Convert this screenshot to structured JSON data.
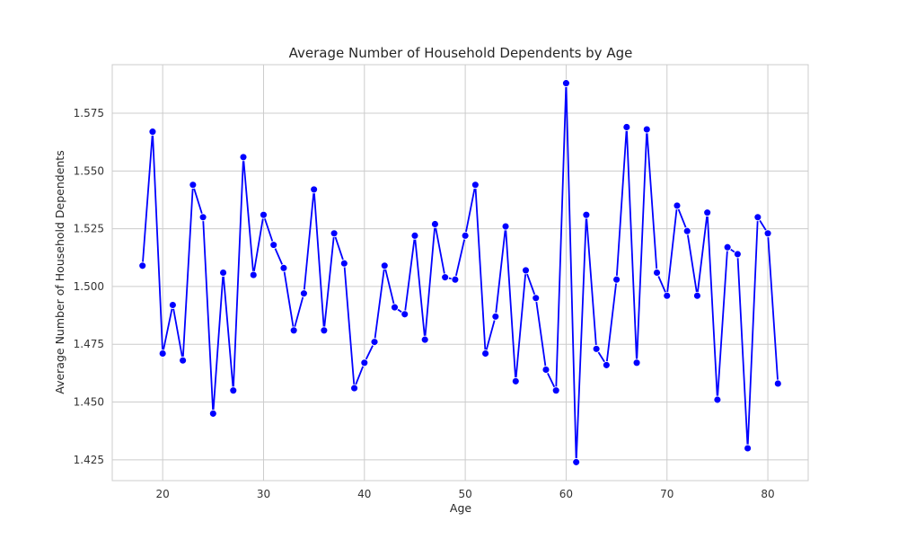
{
  "chart_data": {
    "type": "line",
    "title": "Average Number of Household Dependents by Age",
    "xlabel": "Age",
    "ylabel": "Average Number of Household Dependents",
    "xlim": [
      15,
      84
    ],
    "ylim": [
      1.416,
      1.596
    ],
    "xticks": [
      20,
      30,
      40,
      50,
      60,
      70,
      80
    ],
    "yticks": [
      1.425,
      1.45,
      1.475,
      1.5,
      1.525,
      1.55,
      1.575
    ],
    "ytick_labels": [
      "1.425",
      "1.450",
      "1.475",
      "1.500",
      "1.525",
      "1.550",
      "1.575"
    ],
    "grid": true,
    "legend": "none",
    "colors": {
      "line": "#0000ff",
      "marker": "#0000ff",
      "marker_edge": "#ffffff",
      "grid": "#cccccc",
      "spine": "#cccccc"
    },
    "series": [
      {
        "x": [
          18,
          19,
          20,
          21,
          22,
          23,
          24,
          25,
          26,
          27,
          28,
          29,
          30,
          31,
          32,
          33,
          34,
          35,
          36,
          37,
          38,
          39,
          40,
          41,
          42,
          43,
          44,
          45,
          46,
          47,
          48,
          49,
          50,
          51,
          52,
          53,
          54,
          55,
          56,
          57,
          58,
          59,
          60,
          61,
          62,
          63,
          64,
          65,
          66,
          67,
          68,
          69,
          70,
          71,
          72,
          73,
          74,
          75,
          76,
          77,
          78,
          79,
          80,
          81
        ],
        "y": [
          1.509,
          1.567,
          1.471,
          1.492,
          1.468,
          1.544,
          1.53,
          1.445,
          1.506,
          1.455,
          1.556,
          1.505,
          1.531,
          1.518,
          1.508,
          1.481,
          1.497,
          1.542,
          1.481,
          1.523,
          1.51,
          1.456,
          1.467,
          1.476,
          1.509,
          1.491,
          1.488,
          1.522,
          1.477,
          1.527,
          1.504,
          1.503,
          1.522,
          1.544,
          1.471,
          1.487,
          1.526,
          1.459,
          1.507,
          1.495,
          1.464,
          1.455,
          1.588,
          1.424,
          1.531,
          1.473,
          1.466,
          1.503,
          1.569,
          1.467,
          1.568,
          1.506,
          1.496,
          1.535,
          1.524,
          1.496,
          1.532,
          1.451,
          1.517,
          1.514,
          1.43,
          1.53,
          1.523,
          1.458
        ]
      }
    ]
  }
}
